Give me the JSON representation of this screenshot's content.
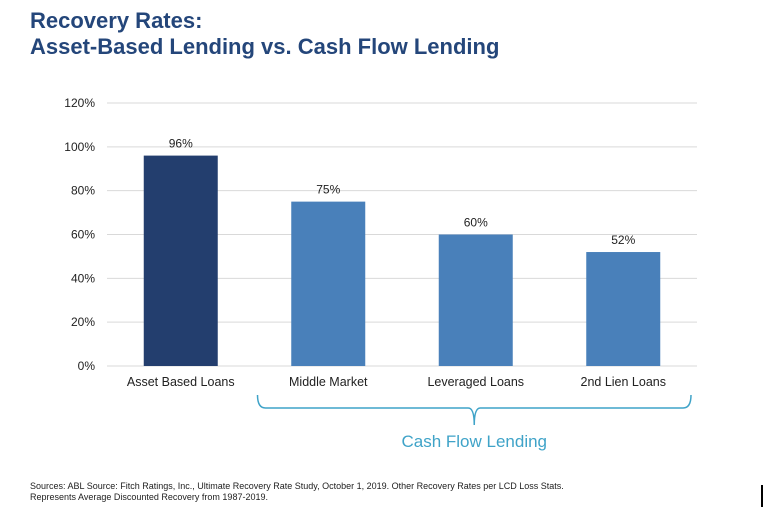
{
  "title": {
    "line1": "Recovery Rates:",
    "line2": "Asset-Based Lending vs. Cash Flow Lending"
  },
  "chart_data": {
    "type": "bar",
    "categories": [
      "Asset Based Loans",
      "Middle Market",
      "Leveraged Loans",
      "2nd Lien Loans"
    ],
    "values": [
      96,
      75,
      60,
      52
    ],
    "data_labels": [
      "96%",
      "75%",
      "60%",
      "52%"
    ],
    "bar_colors": [
      "#233e6e",
      "#4980ba",
      "#4980ba",
      "#4980ba"
    ],
    "yticks": [
      0,
      20,
      40,
      60,
      80,
      100,
      120
    ],
    "ytick_labels": [
      "0%",
      "20%",
      "40%",
      "60%",
      "80%",
      "100%",
      "120%"
    ],
    "ylim": [
      0,
      120
    ],
    "grid": true,
    "group_bracket": {
      "label": "Cash Flow Lending",
      "categories": [
        "Middle Market",
        "Leveraged Loans",
        "2nd Lien Loans"
      ],
      "color": "#3fa3c8"
    }
  },
  "footnote": {
    "line1": "Sources: ABL Source: Fitch Ratings, Inc., Ultimate Recovery Rate Study, October 1, 2019.  Other Recovery Rates per LCD Loss Stats.",
    "line2": "Represents Average Discounted Recovery from 1987-2019."
  },
  "colors": {
    "title": "#24467a",
    "grid": "#d9d9d9"
  }
}
